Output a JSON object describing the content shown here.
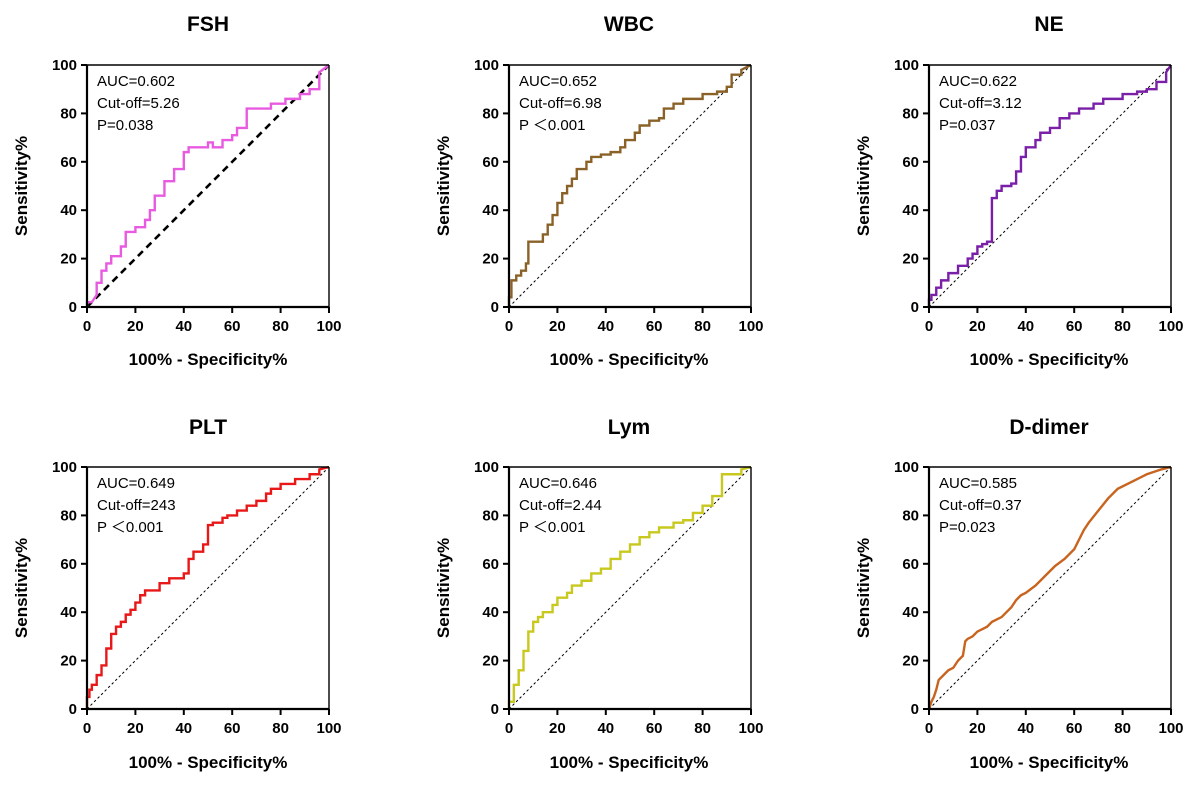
{
  "chart_data": [
    {
      "type": "line",
      "title": "FSH",
      "xlabel": "100% - Specificity%",
      "ylabel": "Sensitivity%",
      "xlim": [
        0,
        100
      ],
      "ylim": [
        0,
        100
      ],
      "xticks": [
        0,
        20,
        40,
        60,
        80,
        100
      ],
      "yticks": [
        0,
        20,
        40,
        60,
        80,
        100
      ],
      "grid": false,
      "annotations": [
        "AUC=0.602",
        "Cut-off=5.26",
        "P=0.038"
      ],
      "color": "#e85ae0",
      "reference_line": "dashed-bold",
      "series": [
        {
          "name": "FSH",
          "x": [
            0,
            0,
            2,
            4,
            4,
            6,
            6,
            8,
            8,
            10,
            10,
            14,
            14,
            16,
            16,
            20,
            20,
            24,
            24,
            26,
            26,
            28,
            28,
            32,
            32,
            36,
            36,
            40,
            40,
            42,
            42,
            50,
            50,
            52,
            52,
            56,
            56,
            60,
            60,
            62,
            62,
            66,
            66,
            76,
            76,
            82,
            82,
            88,
            88,
            92,
            92,
            96,
            96,
            100
          ],
          "y": [
            0,
            2,
            2,
            5,
            10,
            10,
            15,
            15,
            18,
            18,
            21,
            21,
            25,
            25,
            31,
            31,
            33,
            33,
            36,
            36,
            40,
            40,
            46,
            46,
            52,
            52,
            57,
            57,
            64,
            64,
            66,
            66,
            68,
            68,
            66,
            66,
            69,
            69,
            71,
            71,
            74,
            74,
            82,
            82,
            84,
            84,
            86,
            86,
            88,
            88,
            90,
            90,
            97,
            100
          ]
        }
      ]
    },
    {
      "type": "line",
      "title": "WBC",
      "xlabel": "100% - Specificity%",
      "ylabel": "Sensitivity%",
      "xlim": [
        0,
        100
      ],
      "ylim": [
        0,
        100
      ],
      "xticks": [
        0,
        20,
        40,
        60,
        80,
        100
      ],
      "yticks": [
        0,
        20,
        40,
        60,
        80,
        100
      ],
      "grid": false,
      "annotations": [
        "AUC=0.652",
        "Cut-off=6.98",
        "P ＜0.001"
      ],
      "color": "#8a6228",
      "reference_line": "dotted",
      "series": [
        {
          "name": "WBC",
          "x": [
            0,
            0,
            1,
            1,
            3,
            3,
            5,
            5,
            7,
            7,
            8,
            8,
            14,
            14,
            16,
            16,
            18,
            18,
            20,
            20,
            22,
            22,
            24,
            24,
            26,
            26,
            28,
            28,
            32,
            32,
            34,
            34,
            38,
            38,
            42,
            42,
            46,
            46,
            48,
            48,
            52,
            52,
            54,
            54,
            58,
            58,
            62,
            62,
            64,
            64,
            68,
            68,
            72,
            72,
            80,
            80,
            86,
            86,
            90,
            90,
            92,
            92,
            96,
            96,
            100
          ],
          "y": [
            0,
            4,
            4,
            11,
            11,
            13,
            13,
            15,
            15,
            18,
            18,
            27,
            27,
            30,
            30,
            34,
            34,
            38,
            38,
            43,
            43,
            47,
            47,
            50,
            50,
            53,
            53,
            57,
            57,
            60,
            60,
            62,
            62,
            63,
            63,
            64,
            64,
            66,
            66,
            69,
            69,
            72,
            72,
            75,
            75,
            77,
            77,
            78,
            78,
            82,
            82,
            84,
            84,
            86,
            86,
            88,
            88,
            89,
            89,
            91,
            91,
            96,
            96,
            98,
            100
          ]
        }
      ]
    },
    {
      "type": "line",
      "title": "NE",
      "xlabel": "100% - Specificity%",
      "ylabel": "Sensitivity%",
      "xlim": [
        0,
        100
      ],
      "ylim": [
        0,
        100
      ],
      "xticks": [
        0,
        20,
        40,
        60,
        80,
        100
      ],
      "yticks": [
        0,
        20,
        40,
        60,
        80,
        100
      ],
      "grid": false,
      "annotations": [
        "AUC=0.622",
        "Cut-off=3.12",
        "P=0.037"
      ],
      "color": "#7a1fa8",
      "reference_line": "dotted",
      "series": [
        {
          "name": "NE",
          "x": [
            0,
            0,
            1,
            1,
            3,
            3,
            5,
            5,
            8,
            8,
            12,
            12,
            16,
            16,
            18,
            18,
            20,
            20,
            22,
            22,
            24,
            24,
            26,
            26,
            28,
            28,
            30,
            30,
            34,
            34,
            36,
            36,
            38,
            38,
            40,
            40,
            44,
            44,
            46,
            46,
            50,
            50,
            54,
            54,
            58,
            58,
            62,
            62,
            68,
            68,
            72,
            72,
            80,
            80,
            86,
            86,
            90,
            90,
            94,
            94,
            98,
            98,
            100
          ],
          "y": [
            0,
            3,
            3,
            5,
            5,
            8,
            8,
            11,
            11,
            14,
            14,
            17,
            17,
            20,
            20,
            22,
            22,
            25,
            25,
            26,
            26,
            27,
            27,
            45,
            45,
            48,
            48,
            50,
            50,
            51,
            51,
            56,
            56,
            62,
            62,
            66,
            66,
            69,
            69,
            72,
            72,
            74,
            74,
            78,
            78,
            80,
            80,
            82,
            82,
            84,
            84,
            86,
            86,
            88,
            88,
            89,
            89,
            90,
            90,
            93,
            93,
            97,
            100
          ]
        }
      ]
    },
    {
      "type": "line",
      "title": "PLT",
      "xlabel": "100% - Specificity%",
      "ylabel": "Sensitivity%",
      "xlim": [
        0,
        100
      ],
      "ylim": [
        0,
        100
      ],
      "xticks": [
        0,
        20,
        40,
        60,
        80,
        100
      ],
      "yticks": [
        0,
        20,
        40,
        60,
        80,
        100
      ],
      "grid": false,
      "annotations": [
        "AUC=0.649",
        "Cut-off=243",
        "P ＜0.001"
      ],
      "color": "#e81818",
      "reference_line": "dotted",
      "series": [
        {
          "name": "PLT",
          "x": [
            0,
            0,
            1,
            1,
            2,
            2,
            4,
            4,
            6,
            6,
            8,
            8,
            10,
            10,
            12,
            12,
            14,
            14,
            16,
            16,
            18,
            18,
            20,
            20,
            22,
            22,
            24,
            24,
            26,
            26,
            30,
            30,
            34,
            34,
            40,
            40,
            42,
            42,
            44,
            44,
            48,
            48,
            50,
            50,
            52,
            52,
            56,
            56,
            58,
            58,
            62,
            62,
            66,
            66,
            70,
            70,
            74,
            74,
            76,
            76,
            80,
            80,
            86,
            86,
            92,
            92,
            96,
            96,
            100
          ],
          "y": [
            0,
            5,
            5,
            8,
            8,
            10,
            10,
            14,
            14,
            18,
            18,
            25,
            25,
            31,
            31,
            34,
            34,
            36,
            36,
            39,
            39,
            41,
            41,
            44,
            44,
            47,
            47,
            49,
            49,
            49,
            49,
            52,
            52,
            54,
            54,
            56,
            56,
            62,
            62,
            65,
            65,
            68,
            68,
            76,
            76,
            77,
            77,
            79,
            79,
            80,
            80,
            82,
            82,
            84,
            84,
            86,
            86,
            89,
            89,
            91,
            91,
            93,
            93,
            95,
            95,
            97,
            97,
            99,
            100
          ]
        }
      ]
    },
    {
      "type": "line",
      "title": "Lym",
      "xlabel": "100% - Specificity%",
      "ylabel": "Sensitivity%",
      "xlim": [
        0,
        100
      ],
      "ylim": [
        0,
        100
      ],
      "xticks": [
        0,
        20,
        40,
        60,
        80,
        100
      ],
      "yticks": [
        0,
        20,
        40,
        60,
        80,
        100
      ],
      "grid": false,
      "annotations": [
        "AUC=0.646",
        "Cut-off=2.44",
        "P ＜0.001"
      ],
      "color": "#c8c81e",
      "reference_line": "dotted",
      "series": [
        {
          "name": "Lym",
          "x": [
            0,
            0,
            2,
            2,
            4,
            4,
            6,
            6,
            8,
            8,
            10,
            10,
            12,
            12,
            14,
            14,
            18,
            18,
            20,
            20,
            24,
            24,
            26,
            26,
            30,
            30,
            34,
            34,
            38,
            38,
            42,
            42,
            46,
            46,
            50,
            50,
            54,
            54,
            58,
            58,
            62,
            62,
            68,
            68,
            72,
            72,
            76,
            76,
            80,
            80,
            84,
            84,
            88,
            88,
            96,
            96,
            100
          ],
          "y": [
            0,
            3,
            3,
            10,
            10,
            16,
            16,
            24,
            24,
            32,
            32,
            36,
            36,
            38,
            38,
            40,
            40,
            43,
            43,
            46,
            46,
            48,
            48,
            51,
            51,
            53,
            53,
            56,
            56,
            58,
            58,
            62,
            62,
            65,
            65,
            68,
            68,
            71,
            71,
            73,
            73,
            75,
            75,
            77,
            77,
            78,
            78,
            81,
            81,
            84,
            84,
            88,
            88,
            97,
            97,
            99,
            100
          ]
        }
      ]
    },
    {
      "type": "line",
      "title": "D-dimer",
      "xlabel": "100% - Specificity%",
      "ylabel": "Sensitivity%",
      "xlim": [
        0,
        100
      ],
      "ylim": [
        0,
        100
      ],
      "xticks": [
        0,
        20,
        40,
        60,
        80,
        100
      ],
      "yticks": [
        0,
        20,
        40,
        60,
        80,
        100
      ],
      "grid": false,
      "annotations": [
        "AUC=0.585",
        "Cut-off=0.37",
        "P=0.023"
      ],
      "color": "#c8641e",
      "reference_line": "dotted",
      "series": [
        {
          "name": "D-dimer",
          "x": [
            0,
            1,
            2,
            3,
            4,
            5,
            6,
            8,
            10,
            12,
            14,
            15,
            16,
            18,
            20,
            22,
            24,
            26,
            28,
            30,
            32,
            34,
            36,
            38,
            40,
            44,
            48,
            52,
            56,
            60,
            62,
            64,
            66,
            70,
            74,
            78,
            84,
            90,
            96,
            100
          ],
          "y": [
            0,
            3,
            5,
            8,
            12,
            13,
            14,
            16,
            17,
            20,
            22,
            28,
            29,
            30,
            32,
            33,
            34,
            36,
            37,
            38,
            40,
            42,
            45,
            47,
            48,
            51,
            55,
            59,
            62,
            66,
            70,
            74,
            77,
            82,
            87,
            91,
            94,
            97,
            99,
            100
          ]
        }
      ]
    }
  ]
}
